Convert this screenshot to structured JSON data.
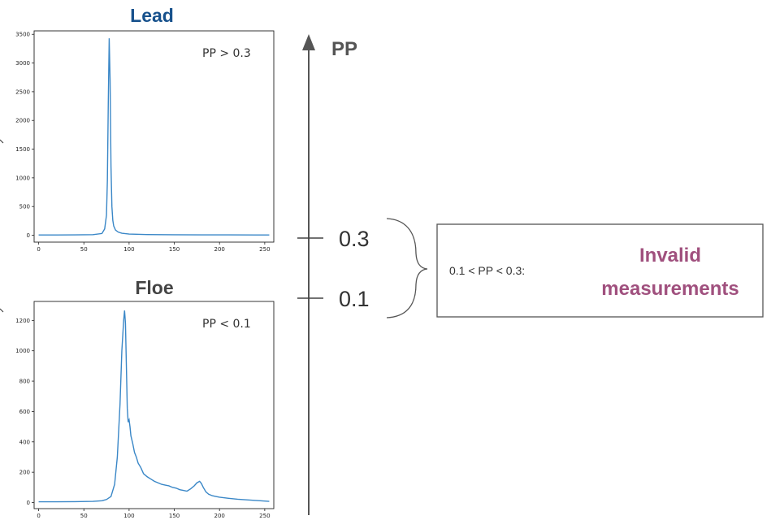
{
  "chart_data": [
    {
      "type": "line",
      "title": "Lead",
      "annotation": "PP > 0.3",
      "xlim": [
        -5,
        260
      ],
      "ylim": [
        -120,
        3560
      ],
      "xticks": [
        0,
        50,
        100,
        150,
        200,
        250
      ],
      "yticks": [
        0,
        500,
        1000,
        1500,
        2000,
        2500,
        3000,
        3500
      ],
      "color": "#3a87c7",
      "series": [
        {
          "x": [
            0,
            20,
            40,
            60,
            70,
            73,
            75,
            76,
            77,
            78,
            79,
            80,
            81,
            82,
            83,
            85,
            88,
            92,
            100,
            120,
            150,
            180,
            210,
            240,
            255
          ],
          "y": [
            5,
            5,
            6,
            10,
            30,
            110,
            350,
            950,
            2300,
            3430,
            2700,
            1200,
            500,
            260,
            160,
            90,
            55,
            35,
            20,
            12,
            8,
            7,
            6,
            5,
            5
          ]
        }
      ]
    },
    {
      "type": "line",
      "title": "Floe",
      "annotation": "PP < 0.1",
      "xlim": [
        -5,
        260
      ],
      "ylim": [
        -40,
        1325
      ],
      "xticks": [
        0,
        50,
        100,
        150,
        200,
        250
      ],
      "yticks": [
        0,
        200,
        400,
        600,
        800,
        1000,
        1200
      ],
      "color": "#3a87c7",
      "series": [
        {
          "x": [
            0,
            20,
            40,
            60,
            70,
            75,
            80,
            84,
            87,
            90,
            92,
            94,
            95,
            96,
            97,
            98,
            99,
            100,
            101,
            102,
            104,
            106,
            108,
            110,
            113,
            116,
            120,
            124,
            128,
            132,
            136,
            140,
            144,
            148,
            152,
            156,
            160,
            164,
            168,
            172,
            175,
            178,
            180,
            182,
            185,
            188,
            192,
            196,
            200,
            210,
            220,
            230,
            240,
            250,
            255
          ],
          "y": [
            5,
            5,
            6,
            8,
            12,
            20,
            40,
            120,
            300,
            650,
            1000,
            1200,
            1265,
            1180,
            900,
            620,
            530,
            545,
            500,
            440,
            390,
            330,
            300,
            260,
            230,
            190,
            170,
            155,
            140,
            130,
            120,
            115,
            110,
            100,
            95,
            85,
            80,
            75,
            90,
            110,
            130,
            140,
            125,
            100,
            70,
            55,
            45,
            40,
            35,
            28,
            22,
            18,
            14,
            10,
            8
          ]
        }
      ]
    }
  ],
  "scale": {
    "axis_label": "PP",
    "tick_high": "0.3",
    "tick_low": "0.1"
  },
  "callout": {
    "range_text": "0.1 < PP < 0.3:",
    "line1": "Invalid",
    "line2": "measurements"
  }
}
